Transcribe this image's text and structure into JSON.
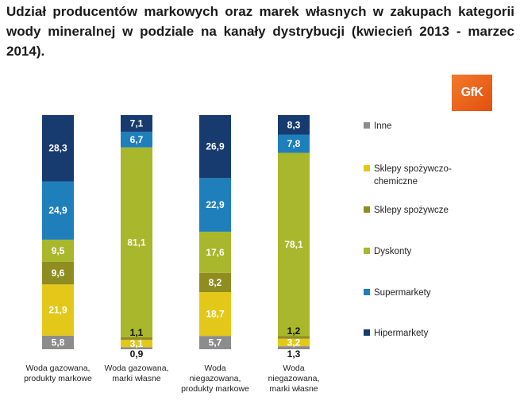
{
  "chart_data": {
    "type": "bar",
    "stacked": true,
    "normalized": true,
    "title": "Udział producentów markowych oraz marek własnych w zakupach kategorii wody mineralnej w podziale na kanały dystrybucji (kwiecień 2013 - marzec 2014).",
    "categories": [
      [
        "Woda gazowana,",
        "produkty markowe"
      ],
      [
        "Woda gazowana,",
        "marki własne"
      ],
      [
        "Woda",
        "niegazowana,",
        "produkty markowe"
      ],
      [
        "Woda",
        "niegazowana,",
        "marki własne"
      ]
    ],
    "series": [
      {
        "name": "Inne",
        "color": "#8c8c8c",
        "values": [
          5.8,
          0.9,
          5.7,
          1.3
        ],
        "labels": [
          "5,8",
          "0,9",
          "5,7",
          "1,3"
        ]
      },
      {
        "name": "Sklepy spożywczo-chemiczne",
        "color": "#e3c81a",
        "values": [
          21.9,
          3.1,
          18.7,
          3.2
        ],
        "labels": [
          "21,9",
          "3,1",
          "18,7",
          "3,2"
        ]
      },
      {
        "name": "Sklepy spożywcze",
        "color": "#8f8d20",
        "values": [
          9.6,
          1.1,
          8.2,
          1.2
        ],
        "labels": [
          "9,6",
          "1,1",
          "8,2",
          "1,2"
        ]
      },
      {
        "name": "Dyskonty",
        "color": "#a8b72b",
        "values": [
          9.5,
          81.1,
          17.6,
          78.1
        ],
        "labels": [
          "9,5",
          "81,1",
          "17,6",
          "78,1"
        ]
      },
      {
        "name": "Supermarkety",
        "color": "#1f7fba",
        "values": [
          24.9,
          6.7,
          22.9,
          7.8
        ],
        "labels": [
          "24,9",
          "6,7",
          "22,9",
          "7,8"
        ]
      },
      {
        "name": "Hipermarkety",
        "color": "#173b6e",
        "values": [
          28.3,
          7.1,
          26.9,
          8.3
        ],
        "labels": [
          "28,3",
          "7,1",
          "26,9",
          "8,3"
        ]
      }
    ],
    "legend_position": "right",
    "legend_order": [
      "Inne",
      "Sklepy spożywczo-chemiczne",
      "Sklepy spożywcze",
      "Dyskonty",
      "Supermarkety",
      "Hipermarkety"
    ],
    "legend_lines": [
      [
        "Inne"
      ],
      [
        "Sklepy spożywczo-",
        "chemiczne"
      ],
      [
        "Sklepy spożywcze"
      ],
      [
        "Dyskonty"
      ],
      [
        "Supermarkety"
      ],
      [
        "Hipermarkety"
      ]
    ]
  },
  "logo": {
    "text": "GfK"
  }
}
